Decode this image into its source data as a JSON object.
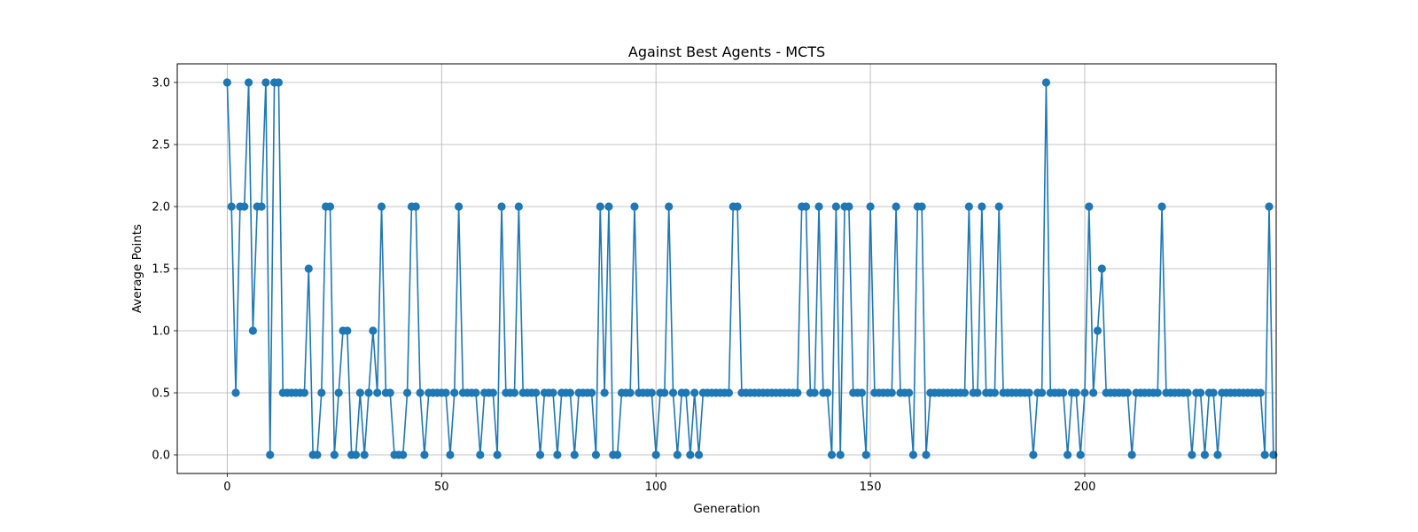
{
  "chart_data": {
    "type": "line",
    "title": "Against Best Agents - MCTS",
    "xlabel": "Generation",
    "ylabel": "Average Points",
    "xlim": [
      -11.65,
      244.65
    ],
    "ylim": [
      -0.15,
      3.15
    ],
    "xticks": [
      0,
      50,
      100,
      150,
      200
    ],
    "yticks": [
      0.0,
      0.5,
      1.0,
      1.5,
      2.0,
      2.5,
      3.0
    ],
    "ytick_labels": [
      "0.0",
      "0.5",
      "1.0",
      "1.5",
      "2.0",
      "2.5",
      "3.0"
    ],
    "grid": true,
    "color": "#1f77b4",
    "marker": "circle",
    "series": [
      {
        "values": [
          3,
          2,
          0.5,
          2,
          2,
          3,
          1,
          2,
          2,
          3,
          0,
          3,
          3,
          0.5,
          0.5,
          0.5,
          0.5,
          0.5,
          0.5,
          1.5,
          0,
          0,
          0.5,
          2,
          2,
          0,
          0.5,
          1,
          1,
          0,
          0,
          0.5,
          0,
          0.5,
          1,
          0.5,
          2,
          0.5,
          0.5,
          0,
          0,
          0,
          0.5,
          2,
          2,
          0.5,
          0,
          0.5,
          0.5,
          0.5,
          0.5,
          0.5,
          0,
          0.5,
          2,
          0.5,
          0.5,
          0.5,
          0.5,
          0,
          0.5,
          0.5,
          0.5,
          0,
          2,
          0.5,
          0.5,
          0.5,
          2,
          0.5,
          0.5,
          0.5,
          0.5,
          0,
          0.5,
          0.5,
          0.5,
          0,
          0.5,
          0.5,
          0.5,
          0,
          0.5,
          0.5,
          0.5,
          0.5,
          0,
          2,
          0.5,
          2,
          0,
          0,
          0.5,
          0.5,
          0.5,
          2,
          0.5,
          0.5,
          0.5,
          0.5,
          0,
          0.5,
          0.5,
          2,
          0.5,
          0,
          0.5,
          0.5,
          0,
          0.5,
          0,
          0.5,
          0.5,
          0.5,
          0.5,
          0.5,
          0.5,
          0.5,
          2,
          2,
          0.5,
          0.5,
          0.5,
          0.5,
          0.5,
          0.5,
          0.5,
          0.5,
          0.5,
          0.5,
          0.5,
          0.5,
          0.5,
          0.5,
          2,
          2,
          0.5,
          0.5,
          2,
          0.5,
          0.5,
          0,
          2,
          0,
          2,
          2,
          0.5,
          0.5,
          0.5,
          0,
          2,
          0.5,
          0.5,
          0.5,
          0.5,
          0.5,
          2,
          0.5,
          0.5,
          0.5,
          0,
          2,
          2,
          0,
          0.5,
          0.5,
          0.5,
          0.5,
          0.5,
          0.5,
          0.5,
          0.5,
          0.5,
          2,
          0.5,
          0.5,
          2,
          0.5,
          0.5,
          0.5,
          2,
          0.5,
          0.5,
          0.5,
          0.5,
          0.5,
          0.5,
          0.5,
          0,
          0.5,
          0.5,
          3,
          0.5,
          0.5,
          0.5,
          0.5,
          0,
          0.5,
          0.5,
          0,
          0.5,
          2,
          0.5,
          1,
          1.5,
          0.5,
          0.5,
          0.5,
          0.5,
          0.5,
          0.5,
          0,
          0.5,
          0.5,
          0.5,
          0.5,
          0.5,
          0.5,
          2,
          0.5,
          0.5,
          0.5,
          0.5,
          0.5,
          0.5,
          0,
          0.5,
          0.5,
          0,
          0.5,
          0.5,
          0,
          0.5,
          0.5,
          0.5,
          0.5,
          0.5,
          0.5,
          0.5,
          0.5,
          0.5,
          0.5,
          0,
          2,
          0
        ]
      }
    ]
  }
}
